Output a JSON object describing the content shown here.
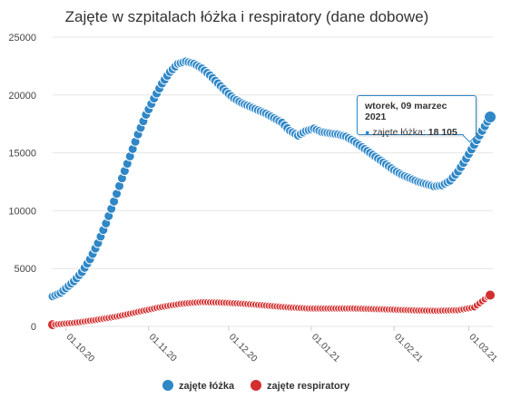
{
  "chart_data": {
    "type": "line",
    "title": "Zajęte w szpitalach łóżka i respiratory (dane dobowe)",
    "xlabel": "",
    "ylabel": "",
    "ylim": [
      0,
      25000
    ],
    "yticks": [
      "0",
      "5000",
      "10000",
      "15000",
      "20000",
      "25000"
    ],
    "ytick_values": [
      0,
      5000,
      10000,
      15000,
      20000,
      25000
    ],
    "xlim": [
      "2020-09-26",
      "2021-03-10"
    ],
    "xticks": [
      {
        "label": "01.10.20",
        "date": "2020-10-01"
      },
      {
        "label": "01.11.20",
        "date": "2020-11-01"
      },
      {
        "label": "01.12.20",
        "date": "2020-12-01"
      },
      {
        "label": "01.01.21",
        "date": "2021-01-01"
      },
      {
        "label": "01.02.21",
        "date": "2021-02-01"
      },
      {
        "label": "01.03.21",
        "date": "2021-03-01"
      }
    ],
    "grid": true,
    "legend_position": "bottom",
    "series": [
      {
        "name": "zajęte łóżka",
        "color": "#2f87c7",
        "points": [
          [
            "2020-09-26",
            2600
          ],
          [
            "2020-09-29",
            2900
          ],
          [
            "2020-10-01",
            3300
          ],
          [
            "2020-10-04",
            3900
          ],
          [
            "2020-10-07",
            4700
          ],
          [
            "2020-10-10",
            5800
          ],
          [
            "2020-10-13",
            7200
          ],
          [
            "2020-10-16",
            8900
          ],
          [
            "2020-10-19",
            10800
          ],
          [
            "2020-10-22",
            12800
          ],
          [
            "2020-10-25",
            14700
          ],
          [
            "2020-10-28",
            16600
          ],
          [
            "2020-10-31",
            18300
          ],
          [
            "2020-11-03",
            19700
          ],
          [
            "2020-11-06",
            21000
          ],
          [
            "2020-11-09",
            22000
          ],
          [
            "2020-11-12",
            22700
          ],
          [
            "2020-11-15",
            22900
          ],
          [
            "2020-11-18",
            22700
          ],
          [
            "2020-11-21",
            22300
          ],
          [
            "2020-11-24",
            21700
          ],
          [
            "2020-11-27",
            21000
          ],
          [
            "2020-11-30",
            20300
          ],
          [
            "2020-12-03",
            19700
          ],
          [
            "2020-12-06",
            19300
          ],
          [
            "2020-12-09",
            19000
          ],
          [
            "2020-12-12",
            18700
          ],
          [
            "2020-12-15",
            18400
          ],
          [
            "2020-12-18",
            18000
          ],
          [
            "2020-12-21",
            17600
          ],
          [
            "2020-12-24",
            16900
          ],
          [
            "2020-12-27",
            16500
          ],
          [
            "2020-12-30",
            16900
          ],
          [
            "2021-01-02",
            17100
          ],
          [
            "2021-01-05",
            16800
          ],
          [
            "2021-01-08",
            16700
          ],
          [
            "2021-01-11",
            16600
          ],
          [
            "2021-01-14",
            16400
          ],
          [
            "2021-01-17",
            16000
          ],
          [
            "2021-01-20",
            15500
          ],
          [
            "2021-01-23",
            15000
          ],
          [
            "2021-01-26",
            14500
          ],
          [
            "2021-01-29",
            14000
          ],
          [
            "2021-02-01",
            13500
          ],
          [
            "2021-02-04",
            13100
          ],
          [
            "2021-02-07",
            12800
          ],
          [
            "2021-02-10",
            12500
          ],
          [
            "2021-02-13",
            12300
          ],
          [
            "2021-02-16",
            12100
          ],
          [
            "2021-02-19",
            12200
          ],
          [
            "2021-02-22",
            12600
          ],
          [
            "2021-02-25",
            13400
          ],
          [
            "2021-02-28",
            14500
          ],
          [
            "2021-03-03",
            15700
          ],
          [
            "2021-03-06",
            16900
          ],
          [
            "2021-03-09",
            18105
          ]
        ]
      },
      {
        "name": "zajęte respiratory",
        "color": "#d32f2f",
        "points": [
          [
            "2020-09-26",
            150
          ],
          [
            "2020-10-04",
            300
          ],
          [
            "2020-10-12",
            550
          ],
          [
            "2020-10-20",
            850
          ],
          [
            "2020-10-28",
            1250
          ],
          [
            "2020-11-05",
            1650
          ],
          [
            "2020-11-13",
            1950
          ],
          [
            "2020-11-21",
            2100
          ],
          [
            "2020-11-29",
            2050
          ],
          [
            "2020-12-07",
            1950
          ],
          [
            "2020-12-15",
            1800
          ],
          [
            "2020-12-23",
            1650
          ],
          [
            "2020-12-31",
            1550
          ],
          [
            "2021-01-08",
            1550
          ],
          [
            "2021-01-16",
            1550
          ],
          [
            "2021-01-24",
            1500
          ],
          [
            "2021-02-01",
            1450
          ],
          [
            "2021-02-09",
            1380
          ],
          [
            "2021-02-17",
            1350
          ],
          [
            "2021-02-25",
            1400
          ],
          [
            "2021-03-03",
            1650
          ],
          [
            "2021-03-09",
            2700
          ]
        ]
      }
    ],
    "tooltip": {
      "date": "wtorek, 09 marzec 2021",
      "series_label": "zajęte łóżka:",
      "value": "18 105"
    }
  }
}
